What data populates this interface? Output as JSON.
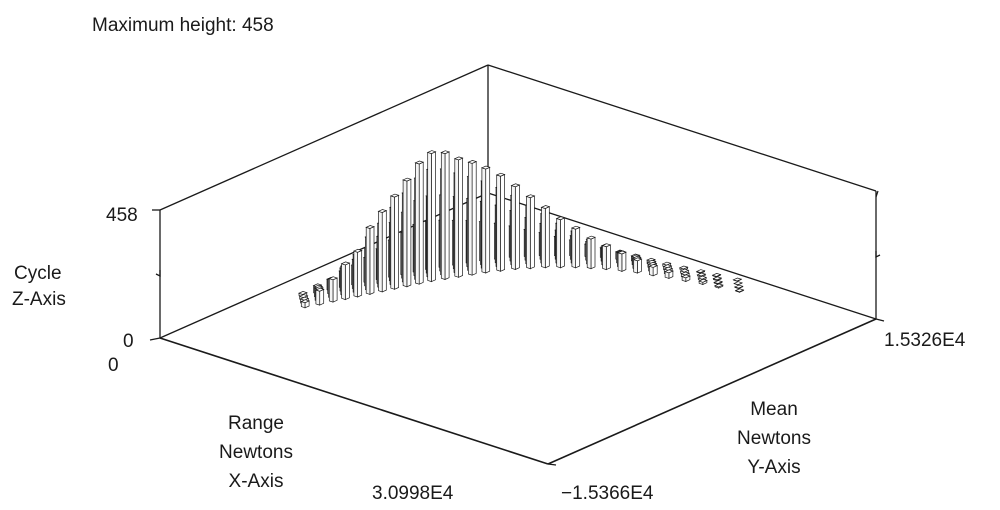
{
  "header": {
    "max_height_text": "Maximum height: 458"
  },
  "chart_data": {
    "type": "bar3d",
    "title": "Maximum height: 458",
    "x_axis": {
      "label_lines": [
        "Range",
        "Newtons",
        "X-Axis"
      ],
      "min_label": "0",
      "max_label": "3.0998E4",
      "range": [
        0,
        30998
      ]
    },
    "y_axis": {
      "label_lines": [
        "Mean",
        "Newtons",
        "Y-Axis"
      ],
      "min_label": "−1.5366E4",
      "max_label": "1.5326E4",
      "range": [
        -15366,
        15326
      ]
    },
    "z_axis": {
      "label_lines": [
        "Cycle",
        "Z-Axis"
      ],
      "min_label": "0",
      "max_label": "458",
      "range": [
        0,
        458
      ]
    },
    "max_height": 458,
    "columns": [
      {
        "x": 2600,
        "y": -5300,
        "bars": [
          8,
          10,
          14,
          18
        ]
      },
      {
        "x": 3000,
        "y": -4400,
        "bars": [
          26,
          34,
          42,
          50
        ]
      },
      {
        "x": 3300,
        "y": -3500,
        "bars": [
          38,
          52,
          66,
          80
        ]
      },
      {
        "x": 3600,
        "y": -2700,
        "bars": [
          58,
          82,
          102,
          124
        ]
      },
      {
        "x": 3900,
        "y": -1900,
        "bars": [
          70,
          104,
          134,
          160
        ]
      },
      {
        "x": 4200,
        "y": -1100,
        "bars": [
          88,
          136,
          188,
          236
        ]
      },
      {
        "x": 4500,
        "y": -300,
        "bars": [
          110,
          168,
          228,
          284
        ]
      },
      {
        "x": 4800,
        "y": 500,
        "bars": [
          132,
          208,
          276,
          330
        ]
      },
      {
        "x": 5100,
        "y": 1300,
        "bars": [
          150,
          236,
          318,
          378
        ]
      },
      {
        "x": 5400,
        "y": 2100,
        "bars": [
          170,
          268,
          362,
          430
        ]
      },
      {
        "x": 5700,
        "y": 2900,
        "bars": [
          172,
          276,
          384,
          458
        ]
      },
      {
        "x": 6100,
        "y": 3700,
        "bars": [
          168,
          272,
          378,
          450
        ]
      },
      {
        "x": 6500,
        "y": 4500,
        "bars": [
          160,
          258,
          356,
          420
        ]
      },
      {
        "x": 6900,
        "y": 5300,
        "bars": [
          152,
          244,
          336,
          400
        ]
      },
      {
        "x": 7300,
        "y": 6100,
        "bars": [
          140,
          226,
          312,
          372
        ]
      },
      {
        "x": 7800,
        "y": 6900,
        "bars": [
          128,
          206,
          282,
          340
        ]
      },
      {
        "x": 8300,
        "y": 7700,
        "bars": [
          112,
          180,
          248,
          296
        ]
      },
      {
        "x": 8900,
        "y": 8400,
        "bars": [
          96,
          152,
          210,
          254
        ]
      },
      {
        "x": 9500,
        "y": 9100,
        "bars": [
          82,
          128,
          176,
          212
        ]
      },
      {
        "x": 10200,
        "y": 9700,
        "bars": [
          68,
          104,
          142,
          172
        ]
      },
      {
        "x": 10900,
        "y": 10300,
        "bars": [
          56,
          84,
          114,
          138
        ]
      },
      {
        "x": 11700,
        "y": 10800,
        "bars": [
          44,
          66,
          88,
          106
        ]
      },
      {
        "x": 12500,
        "y": 11300,
        "bars": [
          34,
          50,
          68,
          82
        ]
      },
      {
        "x": 13400,
        "y": 11700,
        "bars": [
          26,
          38,
          50,
          62
        ]
      },
      {
        "x": 14300,
        "y": 12100,
        "bars": [
          18,
          28,
          36,
          44
        ]
      },
      {
        "x": 15300,
        "y": 12400,
        "bars": [
          12,
          18,
          24,
          30
        ]
      },
      {
        "x": 16300,
        "y": 12700,
        "bars": [
          8,
          12,
          16,
          20
        ]
      },
      {
        "x": 17400,
        "y": 13000,
        "bars": [
          5,
          7,
          10,
          13
        ]
      },
      {
        "x": 18500,
        "y": 13300,
        "bars": [
          3,
          4,
          6,
          8
        ]
      },
      {
        "x": 19600,
        "y": 13500,
        "bars": [
          2,
          3,
          3,
          4
        ]
      },
      {
        "x": 21000,
        "y": 13800,
        "bars": [
          1,
          1,
          2,
          2
        ]
      }
    ]
  }
}
